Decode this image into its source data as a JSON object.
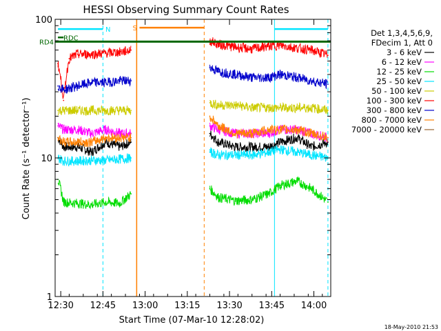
{
  "chart_data": {
    "type": "line",
    "title": "HESSI Observing Summary Count Rates",
    "xlabel": "Start Time (07-Mar-10 12:28:02)",
    "ylabel": "Count Rate (s⁻¹ detector⁻¹)",
    "yscale": "log",
    "ylim": [
      1,
      100
    ],
    "xlim": [
      "12:28",
      "14:06"
    ],
    "x_ticks": [
      "12:30",
      "12:45",
      "13:00",
      "13:15",
      "13:30",
      "13:45",
      "14:00"
    ],
    "y_ticks": [
      "1",
      "10",
      "100"
    ],
    "legend_header": [
      "Det 1,3,4,5,6,9,",
      "FDecim 1, Att 0"
    ],
    "timestamp": "18-May-2010 21:53",
    "data_gaps": [
      [
        "12:57",
        "13:22"
      ]
    ],
    "series": [
      {
        "name": "3 - 6 keV",
        "color": "#000000",
        "x": [
          "12:29",
          "12:31",
          "12:36",
          "12:41",
          "12:46",
          "12:51",
          "12:55",
          "13:23",
          "13:26",
          "13:32",
          "13:38",
          "13:44",
          "13:48",
          "13:54",
          "13:59",
          "14:05"
        ],
        "y": [
          14,
          12,
          12,
          11,
          13,
          12,
          13,
          15,
          13,
          12,
          12,
          12,
          13,
          14,
          12,
          13
        ]
      },
      {
        "name": "6 - 12 keV",
        "color": "#ff00ff",
        "x": [
          "12:29",
          "12:31",
          "12:36",
          "12:41",
          "12:46",
          "12:51",
          "12:55",
          "13:23",
          "13:26",
          "13:32",
          "13:38",
          "13:44",
          "13:48",
          "13:54",
          "13:59",
          "14:05"
        ],
        "y": [
          17,
          16,
          16,
          15,
          16,
          15,
          15,
          17,
          16,
          15,
          15,
          15,
          16,
          16,
          15,
          14
        ]
      },
      {
        "name": "12 - 25 keV",
        "color": "#00dd00",
        "x": [
          "12:29",
          "12:31",
          "12:36",
          "12:41",
          "12:46",
          "12:51",
          "12:55",
          "13:23",
          "13:26",
          "13:32",
          "13:38",
          "13:44",
          "13:48",
          "13:54",
          "13:59",
          "14:05"
        ],
        "y": [
          7,
          4.8,
          4.7,
          4.6,
          4.8,
          4.7,
          5.5,
          6,
          5.2,
          4.9,
          5,
          5.5,
          6.3,
          6.8,
          6,
          4.8
        ]
      },
      {
        "name": "25 - 50 keV",
        "color": "#00e5ff",
        "x": [
          "12:29",
          "12:31",
          "12:36",
          "12:41",
          "12:46",
          "12:51",
          "12:55",
          "13:23",
          "13:26",
          "13:32",
          "13:38",
          "13:44",
          "13:48",
          "13:54",
          "13:59",
          "14:05"
        ],
        "y": [
          10,
          9.5,
          9.5,
          9.6,
          9.6,
          9.8,
          10,
          11,
          10.5,
          10.5,
          10.5,
          11,
          11.5,
          11,
          10.5,
          10
        ]
      },
      {
        "name": "50 - 100 keV",
        "color": "#cccc00",
        "x": [
          "12:29",
          "12:31",
          "12:36",
          "12:41",
          "12:46",
          "12:51",
          "12:55",
          "13:23",
          "13:26",
          "13:32",
          "13:38",
          "13:44",
          "13:48",
          "13:54",
          "13:59",
          "14:05"
        ],
        "y": [
          22,
          22,
          22,
          22,
          22,
          22,
          22,
          25,
          24,
          24,
          23,
          23,
          23,
          23,
          23,
          22
        ]
      },
      {
        "name": "100 - 300 keV",
        "color": "#ff0000",
        "x": [
          "12:29",
          "12:31",
          "12:33",
          "12:36",
          "12:41",
          "12:46",
          "12:51",
          "12:55",
          "13:23",
          "13:26",
          "13:32",
          "13:38",
          "13:44",
          "13:48",
          "13:54",
          "13:59",
          "14:05"
        ],
        "y": [
          48,
          26,
          52,
          56,
          56,
          57,
          58,
          60,
          70,
          66,
          63,
          61,
          64,
          65,
          62,
          60,
          55
        ]
      },
      {
        "name": "300 - 800 keV",
        "color": "#0000cc",
        "x": [
          "12:29",
          "12:31",
          "12:36",
          "12:41",
          "12:46",
          "12:51",
          "12:55",
          "13:23",
          "13:26",
          "13:32",
          "13:38",
          "13:44",
          "13:48",
          "13:54",
          "13:59",
          "14:05"
        ],
        "y": [
          33,
          31,
          33,
          35,
          35,
          36,
          36,
          45,
          42,
          40,
          38,
          38,
          40,
          38,
          36,
          34
        ]
      },
      {
        "name": "800 - 7000 keV",
        "color": "#ff8000",
        "x": [
          "12:29",
          "12:31",
          "12:36",
          "12:41",
          "12:46",
          "12:51",
          "12:55",
          "13:23",
          "13:26",
          "13:32",
          "13:38",
          "13:44",
          "13:48",
          "13:54",
          "13:59",
          "14:05"
        ],
        "y": [
          14,
          13,
          13,
          13,
          14,
          14,
          14,
          20,
          17,
          15,
          15,
          16,
          16,
          16,
          15,
          14
        ]
      },
      {
        "name": "7000 - 20000 keV",
        "color": "#996633",
        "x": [],
        "y": []
      }
    ],
    "flag_bars": [
      {
        "label": "N",
        "color": "#00e5ff",
        "level": 85,
        "segments": [
          [
            "12:29",
            "12:45"
          ],
          [
            "13:46",
            "14:05"
          ]
        ]
      },
      {
        "label": "S",
        "color": "#ff8000",
        "level": 87,
        "segments": [
          [
            "12:58",
            "13:21"
          ]
        ]
      },
      {
        "label": "RDC",
        "color": "#006600",
        "level": 74,
        "segments": [
          [
            "12:29",
            "12:31"
          ]
        ]
      },
      {
        "label": "RD4",
        "color": "#006600",
        "level": 69,
        "segments": [
          [
            "12:28",
            "14:06"
          ]
        ]
      }
    ],
    "vertical_markers": [
      {
        "x": "12:28",
        "color": "#00e5ff",
        "style": "solid"
      },
      {
        "x": "12:45",
        "color": "#00e5ff",
        "style": "dashed"
      },
      {
        "x": "12:57",
        "color": "#ff8000",
        "style": "solid"
      },
      {
        "x": "13:21",
        "color": "#ff8000",
        "style": "dashed"
      },
      {
        "x": "13:46",
        "color": "#00e5ff",
        "style": "solid"
      },
      {
        "x": "14:05",
        "color": "#00e5ff",
        "style": "dashed"
      }
    ]
  }
}
